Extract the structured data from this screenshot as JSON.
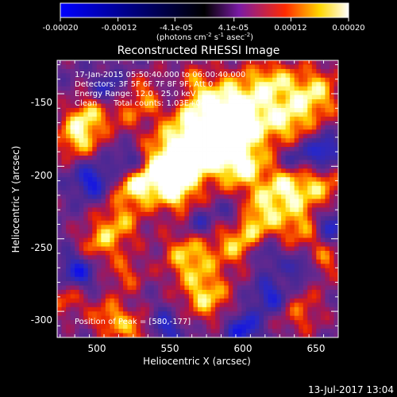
{
  "chart_data": {
    "type": "heatmap",
    "title": "Reconstructed RHESSI Image",
    "xlabel": "Heliocentric X (arcsec)",
    "ylabel": "Heliocentric Y (arcsec)",
    "xlim": [
      473,
      665
    ],
    "ylim": [
      -318,
      -127
    ],
    "xticks": [
      500,
      550,
      600,
      650
    ],
    "yticks": [
      -150,
      -200,
      -250,
      -300
    ],
    "colorbar": {
      "min": -0.0002,
      "max": 0.0002,
      "tick_labels": [
        "-0.00020",
        "-0.00012",
        "-4.1e-05",
        "4.1e-05",
        "0.00012",
        "0.00020"
      ],
      "tick_values": [
        -0.0002,
        -0.00012,
        -4.1e-05,
        4.1e-05,
        0.00012,
        0.0002
      ],
      "label_parts": [
        "(photons cm",
        "-2",
        " s",
        "-1",
        " asec",
        "-2",
        ")"
      ]
    },
    "annotations": [
      "17-Jan-2015 05:50:40.000 to 06:00:40.000",
      "Detectors: 3F 5F 6F 7F 8F 9F, Att 0",
      "Energy Range: 12.0 - 25.0 keV",
      "Clean",
      "Total counts: 1.03E+04"
    ],
    "peak_label": "Position of Peak = [580,-177]",
    "peak": [
      580,
      -177
    ],
    "colors": [
      "#0000ff",
      "#000000",
      "#7a1aa5",
      "#ff2a00",
      "#ffd700",
      "#ffffff"
    ]
  },
  "footer": {
    "timestamp": "13-Jul-2017 13:04"
  }
}
